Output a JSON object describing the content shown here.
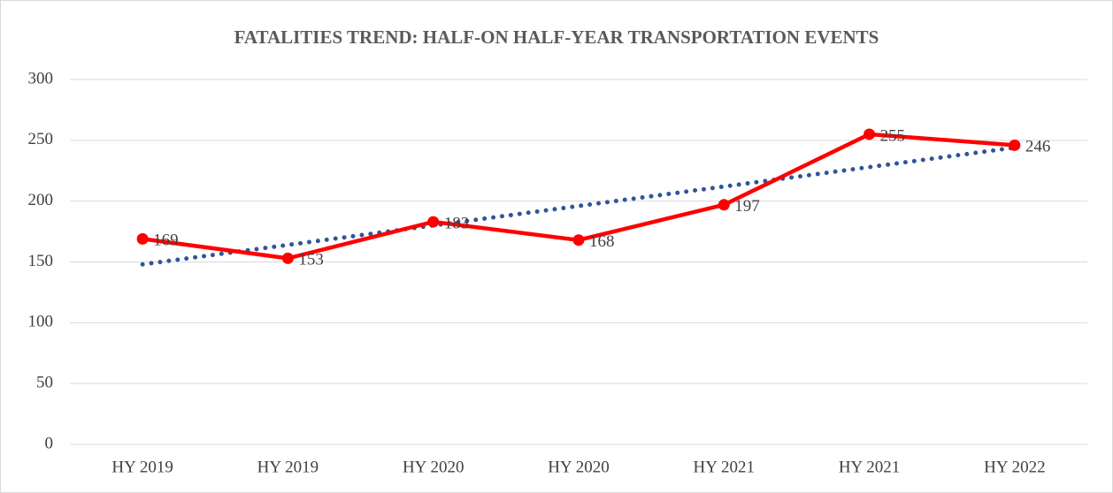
{
  "chart_data": {
    "type": "line",
    "title": "FATALITIES TREND: HALF-ON HALF-YEAR TRANSPORTATION EVENTS",
    "categories": [
      "HY 2019",
      "HY 2019",
      "HY 2020",
      "HY 2020",
      "HY 2021",
      "HY 2021",
      "HY 2022"
    ],
    "series": [
      {
        "color": "#ff0000",
        "values": [
          169,
          153,
          183,
          168,
          197,
          255,
          246
        ]
      }
    ],
    "trendline": {
      "color": "#2f5597",
      "values": [
        148,
        164,
        180,
        196,
        212,
        228,
        244
      ]
    },
    "ylim": [
      0,
      300
    ],
    "yticks": [
      0,
      50,
      100,
      150,
      200,
      250,
      300
    ],
    "grid": true
  }
}
